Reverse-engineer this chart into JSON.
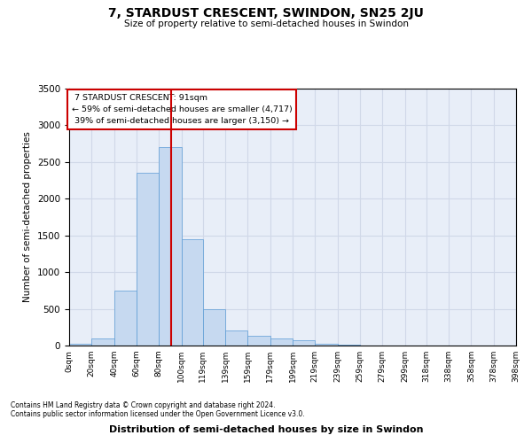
{
  "title": "7, STARDUST CRESCENT, SWINDON, SN25 2JU",
  "subtitle": "Size of property relative to semi-detached houses in Swindon",
  "xlabel": "Distribution of semi-detached houses by size in Swindon",
  "ylabel": "Number of semi-detached properties",
  "footer_line1": "Contains HM Land Registry data © Crown copyright and database right 2024.",
  "footer_line2": "Contains public sector information licensed under the Open Government Licence v3.0.",
  "property_size": 91,
  "property_label": "7 STARDUST CRESCENT: 91sqm",
  "pct_smaller": 59,
  "n_smaller": 4717,
  "pct_larger": 39,
  "n_larger": 3150,
  "bin_labels": [
    "0sqm",
    "20sqm",
    "40sqm",
    "60sqm",
    "80sqm",
    "100sqm",
    "119sqm",
    "139sqm",
    "159sqm",
    "179sqm",
    "199sqm",
    "219sqm",
    "239sqm",
    "259sqm",
    "279sqm",
    "299sqm",
    "318sqm",
    "338sqm",
    "358sqm",
    "378sqm",
    "398sqm"
  ],
  "bin_edges": [
    0,
    20,
    40,
    60,
    80,
    100,
    119,
    139,
    159,
    179,
    199,
    219,
    239,
    259,
    279,
    299,
    318,
    338,
    358,
    378,
    398
  ],
  "bar_heights": [
    30,
    100,
    750,
    2350,
    2700,
    1450,
    500,
    200,
    130,
    100,
    70,
    20,
    10,
    5,
    2,
    1,
    1,
    0,
    0,
    0
  ],
  "bar_color": "#c6d9f0",
  "bar_edge_color": "#5b9bd5",
  "grid_color": "#d0d8e8",
  "background_color": "#e8eef8",
  "annotation_box_color": "#ffffff",
  "annotation_box_edge": "#cc0000",
  "vline_color": "#cc0000",
  "ylim": [
    0,
    3500
  ],
  "yticks": [
    0,
    500,
    1000,
    1500,
    2000,
    2500,
    3000,
    3500
  ]
}
